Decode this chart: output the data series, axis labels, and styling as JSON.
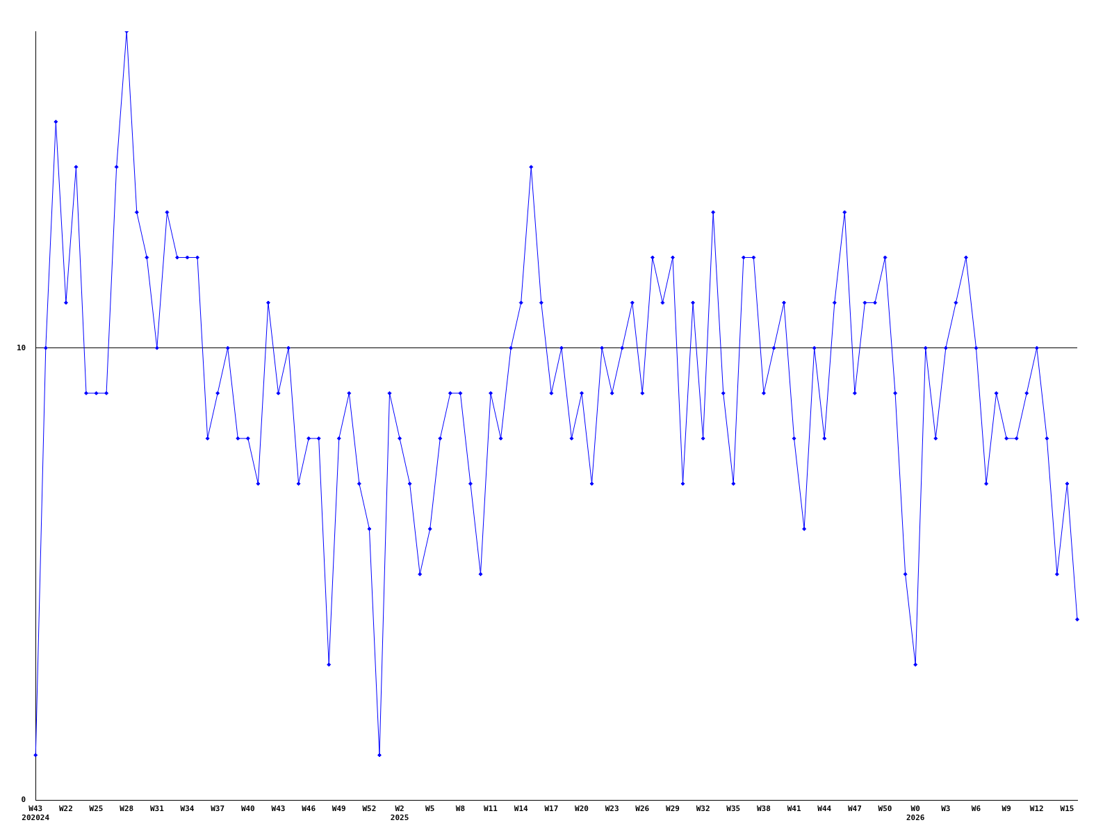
{
  "chart_data": {
    "type": "line",
    "categories": [
      "W43\n202024",
      null,
      null,
      "W22",
      null,
      null,
      "W25",
      null,
      null,
      "W28",
      null,
      null,
      "W31",
      null,
      null,
      "W34",
      null,
      null,
      "W37",
      null,
      null,
      "W40",
      null,
      null,
      "W43",
      null,
      null,
      "W46",
      null,
      null,
      "W49",
      null,
      null,
      "W52",
      null,
      null,
      "W2\n2025",
      null,
      null,
      "W5",
      null,
      null,
      "W8",
      null,
      null,
      "W11",
      null,
      null,
      "W14",
      null,
      null,
      "W17",
      null,
      null,
      "W20",
      null,
      null,
      "W23",
      null,
      null,
      "W26",
      null,
      null,
      "W29",
      null,
      null,
      "W32",
      null,
      null,
      "W35",
      null,
      null,
      "W38",
      null,
      null,
      "W41",
      null,
      null,
      "W44",
      null,
      null,
      "W47",
      null,
      null,
      "W50",
      null,
      null,
      "W0\n2026",
      null,
      null,
      "W3",
      null,
      null,
      "W6",
      null,
      null,
      "W9",
      null,
      null,
      "W12",
      null,
      null,
      "W15",
      null
    ],
    "series": [
      {
        "color": "#0000ff",
        "values": [
          1,
          10,
          15,
          11,
          14,
          9,
          9,
          9,
          14,
          17,
          13,
          12,
          10,
          13,
          12,
          12,
          12,
          8,
          9,
          10,
          8,
          8,
          7,
          11,
          9,
          10,
          7,
          8,
          8,
          3,
          8,
          9,
          7,
          6,
          1,
          9,
          8,
          7,
          5,
          6,
          8,
          9,
          9,
          7,
          5,
          9,
          8,
          10,
          11,
          14,
          11,
          9,
          10,
          8,
          9,
          7,
          10,
          9,
          10,
          11,
          9,
          12,
          11,
          12,
          7,
          11,
          8,
          13,
          9,
          7,
          12,
          12,
          9,
          10,
          11,
          8,
          6,
          10,
          8,
          11,
          13,
          9,
          11,
          11,
          12,
          9,
          5,
          3,
          10,
          8,
          10,
          11,
          12,
          10,
          7,
          9,
          8,
          8,
          9,
          10,
          8,
          5,
          7,
          4
        ]
      }
    ],
    "ylim": [
      0,
      17
    ],
    "yticks": [
      0,
      10
    ],
    "grid": "y",
    "marker": "diamond"
  }
}
